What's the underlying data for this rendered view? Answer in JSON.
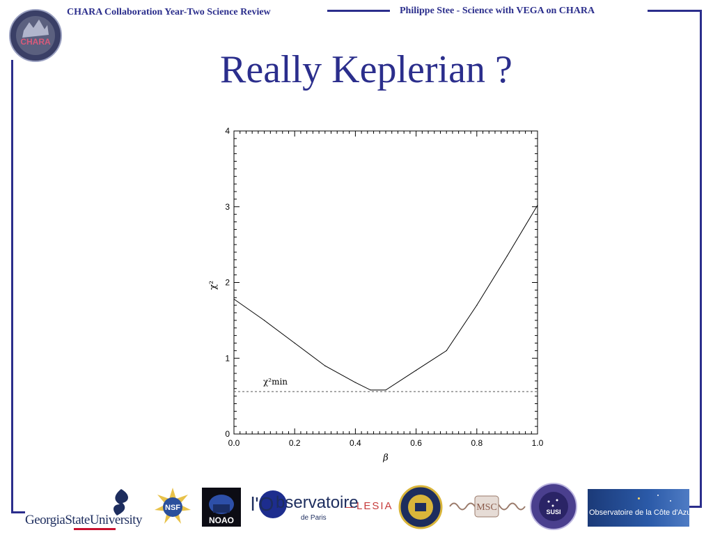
{
  "header": {
    "left_title": "CHARA Collaboration Year-Two Science Review",
    "right_title": "Philippe Stee - Science with VEGA on CHARA"
  },
  "slide": {
    "title": "Really Keplerian ?"
  },
  "logos": {
    "chara": "CHARA",
    "gsu": "GeorgiaStateUniversity",
    "nsf": "NSF",
    "noao": "NOAO",
    "observatoire_main": "bservatoire",
    "observatoire_prefix": "l'O",
    "observatoire_sub": "de Paris",
    "lesia": "LESIA",
    "msc": "MSC",
    "susi": "SUSI",
    "oca": "Observatoire de la Côte d'Azur"
  },
  "colors": {
    "accent": "#2b2e8c",
    "curve": "#000000",
    "min_line": "#555555"
  },
  "chart_data": {
    "type": "line",
    "title": "",
    "xlabel": "β",
    "ylabel": "χ²",
    "xlim": [
      0.0,
      1.0
    ],
    "ylim": [
      0,
      4
    ],
    "xticks": [
      "0.0",
      "0.2",
      "0.4",
      "0.6",
      "0.8",
      "1.0"
    ],
    "yticks": [
      "0",
      "1",
      "2",
      "3",
      "4"
    ],
    "series": [
      {
        "x": [
          0.0,
          0.1,
          0.2,
          0.3,
          0.4,
          0.45,
          0.5,
          0.6,
          0.7,
          0.8,
          0.9,
          1.0
        ],
        "values": [
          1.78,
          1.5,
          1.2,
          0.9,
          0.68,
          0.58,
          0.58,
          0.84,
          1.1,
          1.7,
          2.35,
          3.02
        ]
      }
    ],
    "annotations": [
      {
        "text": "χ²min",
        "y": 0.56,
        "style": "dashed horizontal line"
      }
    ],
    "grid": false
  }
}
